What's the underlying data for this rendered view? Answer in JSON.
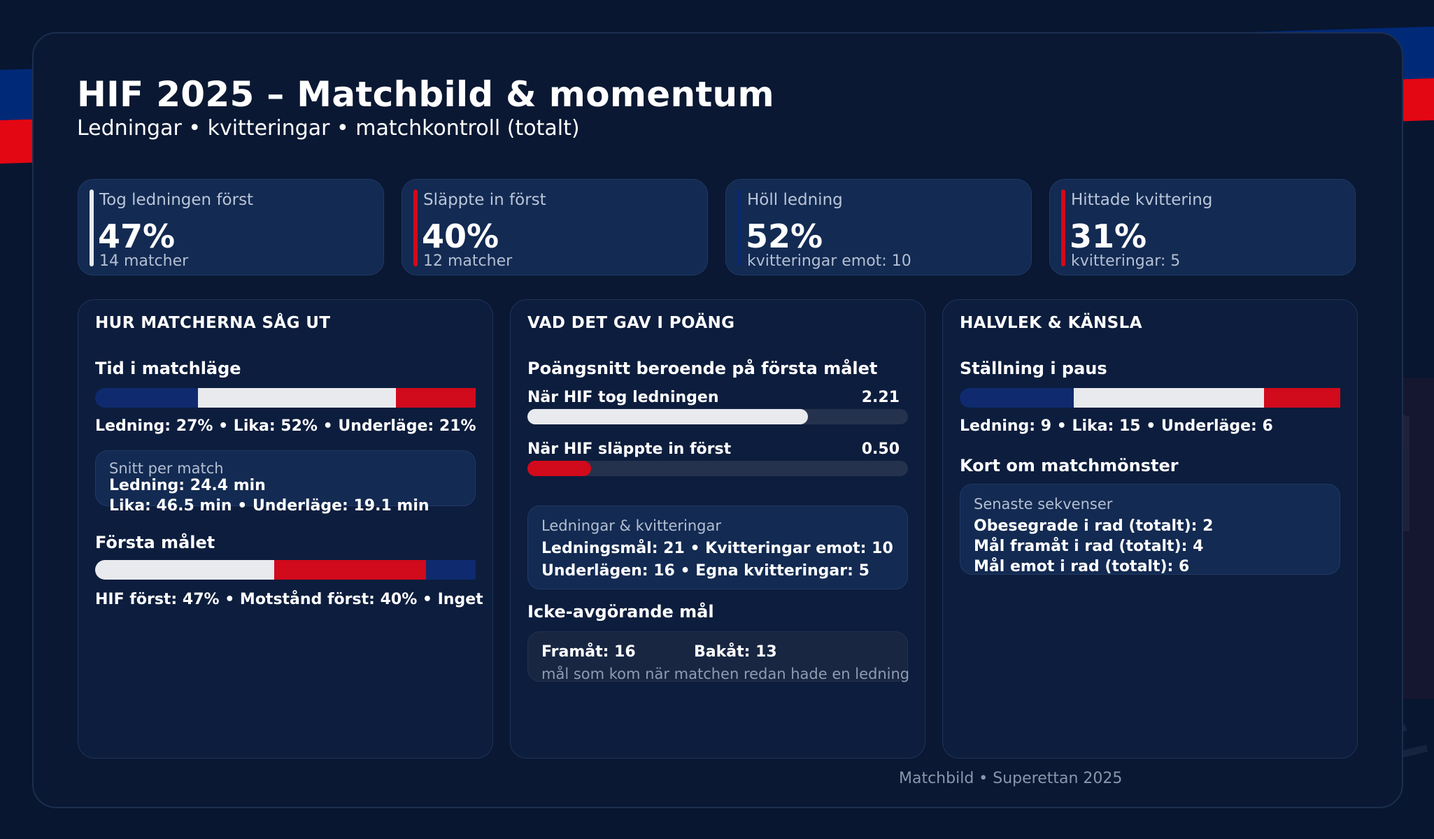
{
  "header": {
    "title": "HIF 2025 – Matchbild & momentum",
    "subtitle": "Ledningar • kvitteringar • matchkontroll (totalt)"
  },
  "colors": {
    "background": "#081630",
    "card": "#132a52",
    "navy": "#002a78",
    "red": "#e30613",
    "white": "#e9eaee"
  },
  "kpis": [
    {
      "label": "Tog ledningen först",
      "value": "47%",
      "sub": "14 matcher",
      "accent": "#e9eaee"
    },
    {
      "label": "Släppte in först",
      "value": "40%",
      "sub": "12 matcher",
      "accent": "#d10a1c"
    },
    {
      "label": "Höll ledning",
      "value": "52%",
      "sub": "kvitteringar emot: 10",
      "accent": "#0a2a6e"
    },
    {
      "label": "Hittade kvittering",
      "value": "31%",
      "sub": "kvitteringar: 5",
      "accent": "#d10a1c"
    }
  ],
  "panel1": {
    "title": "HUR MATCHERNA SÅG UT",
    "state_heading": "Tid i matchläge",
    "state_segments": [
      {
        "name": "Ledning",
        "percent": 27,
        "color": "#0f2a6e"
      },
      {
        "name": "Lika",
        "percent": 52,
        "color": "#e9eaee"
      },
      {
        "name": "Underläge",
        "percent": 21,
        "color": "#d10a1c"
      }
    ],
    "state_legend": "Ledning: 27%  •  Lika: 52%  •  Underläge: 21%",
    "avg_title": "Snitt per match",
    "avg_line1": "Ledning: 24.4 min",
    "avg_line2": "Lika: 46.5 min  •  Underläge: 19.1 min",
    "first_goal_heading": "Första målet",
    "first_goal_segments": [
      {
        "name": "HIF först",
        "percent": 47,
        "color": "#e9eaee"
      },
      {
        "name": "Motstånd först",
        "percent": 40,
        "color": "#d10a1c"
      },
      {
        "name": "Inget",
        "percent": 13,
        "color": "#0f2a6e"
      }
    ],
    "first_goal_legend": "HIF först: 47%  •  Motstånd först: 40%  •  Inget"
  },
  "panel2": {
    "title": "VAD DET GAV I POÄNG",
    "ppg_heading": "Poängsnitt beroende på första målet",
    "ppg_max": 3,
    "ppg_rows": [
      {
        "label": "När HIF tog ledningen",
        "value": 2.21,
        "value_text": "2.21",
        "color": "#e9eaee"
      },
      {
        "label": "När HIF släppte in först",
        "value": 0.5,
        "value_text": "0.50",
        "color": "#d10a1c"
      }
    ],
    "lk_title": "Ledningar & kvitteringar",
    "lk_line1": "Ledningsmål: 21  •  Kvitteringar emot: 10",
    "lk_line2": "Underlägen: 16  •  Egna kvitteringar: 5",
    "nd_heading": "Icke-avgörande mål",
    "nd_forward": "Framåt: 16",
    "nd_back": "Bakåt: 13",
    "nd_note": "mål som kom när matchen redan hade en ledning"
  },
  "panel3": {
    "title": "HALVLEK & KÄNSLA",
    "ht_heading": "Ställning i paus",
    "ht_segments": [
      {
        "name": "Ledning",
        "count": 9,
        "color": "#0f2a6e"
      },
      {
        "name": "Lika",
        "count": 15,
        "color": "#e9eaee"
      },
      {
        "name": "Underläge",
        "count": 6,
        "color": "#d10a1c"
      }
    ],
    "ht_legend": "Ledning: 9  •  Lika: 15  •  Underläge: 6",
    "pattern_heading": "Kort om matchmönster",
    "seq_title": "Senaste sekvenser",
    "seq_line1": "Obesegrade i rad (totalt): 2",
    "seq_line2": "Mål framåt i rad (totalt): 4",
    "seq_line3": "Mål emot i rad (totalt): 6"
  },
  "footer": "Matchbild • Superettan 2025"
}
